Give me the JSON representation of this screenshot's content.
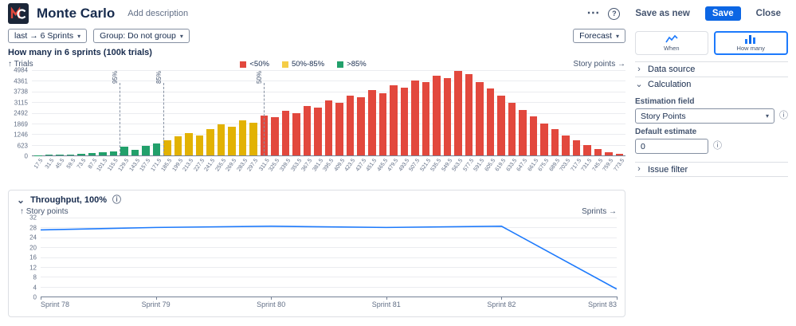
{
  "header": {
    "title": "Monte Carlo",
    "add_description": "Add description",
    "save_as_new": "Save as new",
    "save": "Save",
    "close": "Close"
  },
  "icons": {
    "more": "⋯",
    "help": "?",
    "info": "ⓘ",
    "caret": "▾",
    "chevron_right": "›",
    "chevron_down": "⌄"
  },
  "toolbar": {
    "range_chip": "last → 6 Sprints",
    "group_chip": "Group: Do not group",
    "forecast": "Forecast"
  },
  "chart_data": [
    {
      "type": "bar",
      "title": "How many in 6 sprints (100k trials)",
      "ylabel": "Trials",
      "ylabel_display": "↑ Trials",
      "xlabel": "Story points",
      "xlabel_display": "Story points →",
      "ylim": [
        0,
        4984
      ],
      "y_ticks": [
        0,
        623,
        1246,
        1869,
        2492,
        3115,
        3738,
        4361,
        4984
      ],
      "legend": [
        {
          "label": "<50%",
          "color": "#E2483D"
        },
        {
          "label": "50%-85%",
          "color": "#F5CD47"
        },
        {
          "label": ">85%",
          "color": "#22A06B"
        }
      ],
      "colors": {
        "green": "#22A06B",
        "yellow": "#E2B203",
        "red": "#E2483D"
      },
      "color_zones": {
        "green_until_index": 11,
        "yellow_until_index": 20
      },
      "percentile_lines": [
        {
          "label": "95%",
          "pos": 0.148
        },
        {
          "label": "85%",
          "pos": 0.222
        },
        {
          "label": "50%",
          "pos": 0.39
        }
      ],
      "categories": [
        "17.5",
        "31.5",
        "45.5",
        "59.5",
        "73.5",
        "87.5",
        "101.5",
        "115.5",
        "129.5",
        "143.5",
        "157.5",
        "171.5",
        "185.5",
        "199.5",
        "213.5",
        "227.5",
        "241.5",
        "255.5",
        "269.5",
        "283.5",
        "297.5",
        "311.5",
        "325.5",
        "339.5",
        "353.5",
        "367.5",
        "381.5",
        "395.5",
        "409.5",
        "423.5",
        "437.5",
        "451.5",
        "465.5",
        "479.5",
        "493.5",
        "507.5",
        "521.5",
        "535.5",
        "549.5",
        "563.5",
        "577.5",
        "591.5",
        "605.5",
        "619.5",
        "633.5",
        "647.5",
        "661.5",
        "675.5",
        "689.5",
        "703.5",
        "717.5",
        "731.5",
        "745.5",
        "759.5",
        "773.5"
      ],
      "values": [
        20,
        35,
        50,
        70,
        95,
        130,
        175,
        240,
        520,
        330,
        560,
        720,
        900,
        1100,
        1300,
        1180,
        1550,
        1800,
        1680,
        2050,
        1920,
        2350,
        2230,
        2600,
        2480,
        2900,
        2780,
        3200,
        3080,
        3500,
        3380,
        3800,
        3650,
        4100,
        3950,
        4400,
        4280,
        4650,
        4530,
        4950,
        4760,
        4300,
        3900,
        3480,
        3060,
        2650,
        2260,
        1880,
        1520,
        1180,
        870,
        600,
        380,
        200,
        90
      ]
    },
    {
      "type": "line",
      "title": "Throughput, 100%",
      "ylabel": "Story points",
      "ylabel_display": "↑ Story points",
      "xlabel": "Sprints",
      "xlabel_display": "Sprints →",
      "ylim": [
        0,
        32
      ],
      "y_ticks": [
        0,
        4,
        8,
        12,
        16,
        20,
        24,
        28,
        32
      ],
      "line_color": "#1D7AFC",
      "categories": [
        "Sprint 78",
        "Sprint 79",
        "Sprint 80",
        "Sprint 81",
        "Sprint 82",
        "Sprint 83"
      ],
      "values": [
        27,
        28,
        28.5,
        28,
        28.5,
        3
      ]
    }
  ],
  "sidebar": {
    "views": [
      {
        "label": "When",
        "selected": false
      },
      {
        "label": "How many",
        "selected": true
      }
    ],
    "sections": [
      {
        "label": "Data source",
        "expanded": false
      },
      {
        "label": "Calculation",
        "expanded": true
      },
      {
        "label": "Issue filter",
        "expanded": false
      }
    ],
    "calculation": {
      "estimation_field_label": "Estimation field",
      "estimation_field_value": "Story Points",
      "default_estimate_label": "Default estimate",
      "default_estimate_value": "0"
    }
  }
}
